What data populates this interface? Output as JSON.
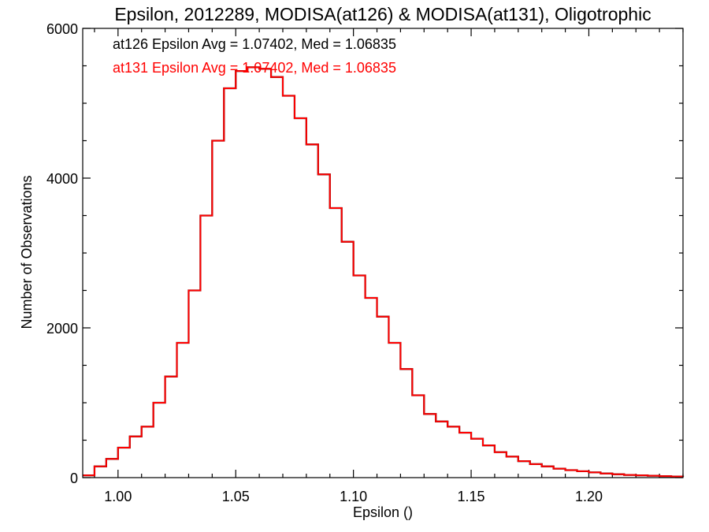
{
  "chart_data": {
    "type": "histogram",
    "title": "Epsilon, 2012289, MODISA(at126) & MODISA(at131), Oligotrophic",
    "xlabel": "Epsilon ()",
    "ylabel": "Number of Observations",
    "xlim": [
      0.985,
      1.24
    ],
    "ylim": [
      0,
      6000
    ],
    "xticks": [
      1.0,
      1.05,
      1.1,
      1.15,
      1.2
    ],
    "xtick_labels": [
      "1.00",
      "1.05",
      "1.10",
      "1.15",
      "1.20"
    ],
    "yticks": [
      0,
      2000,
      4000,
      6000
    ],
    "ytick_labels": [
      "0",
      "2000",
      "4000",
      "6000"
    ],
    "grid": false,
    "annotations": [
      {
        "text": "at126 Epsilon Avg = 1.07402, Med = 1.06835",
        "color": "#000000"
      },
      {
        "text": "at131 Epsilon Avg = 1.07402, Med = 1.06835",
        "color": "#ff0000"
      }
    ],
    "series": [
      {
        "color": "#000000"
      },
      {
        "color": "#ff0000"
      }
    ],
    "x": [
      0.985,
      0.99,
      0.995,
      1.0,
      1.005,
      1.01,
      1.015,
      1.02,
      1.025,
      1.03,
      1.035,
      1.04,
      1.045,
      1.05,
      1.055,
      1.06,
      1.065,
      1.07,
      1.075,
      1.08,
      1.085,
      1.09,
      1.095,
      1.1,
      1.105,
      1.11,
      1.115,
      1.12,
      1.125,
      1.13,
      1.135,
      1.14,
      1.145,
      1.15,
      1.155,
      1.16,
      1.165,
      1.17,
      1.175,
      1.18,
      1.185,
      1.19,
      1.195,
      1.2,
      1.205,
      1.21,
      1.215,
      1.22,
      1.225,
      1.23,
      1.235,
      1.24
    ],
    "y": [
      30,
      150,
      250,
      400,
      550,
      680,
      1000,
      1350,
      1800,
      2500,
      3500,
      4500,
      5200,
      5430,
      5480,
      5460,
      5350,
      5100,
      4800,
      4450,
      4050,
      3600,
      3150,
      2700,
      2400,
      2150,
      1800,
      1450,
      1100,
      850,
      750,
      680,
      600,
      520,
      430,
      340,
      280,
      220,
      180,
      150,
      120,
      100,
      85,
      70,
      55,
      45,
      35,
      30,
      25,
      20,
      15,
      10
    ]
  }
}
